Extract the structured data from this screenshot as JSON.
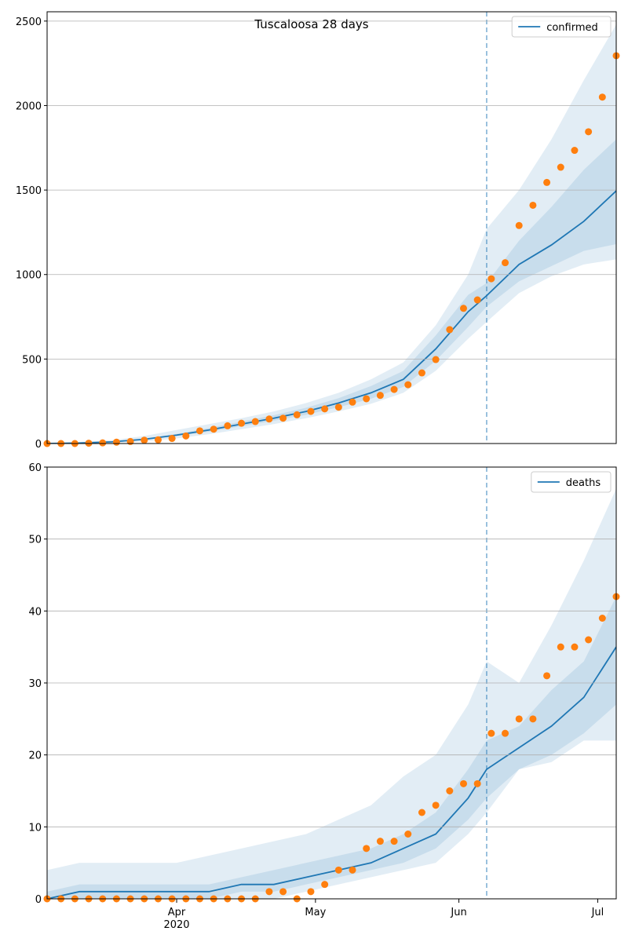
{
  "chart_data": [
    {
      "type": "line",
      "title": "Tuscaloosa 28 days",
      "xlim": [
        64,
        187
      ],
      "ylim": [
        0,
        2555
      ],
      "yticks": [
        0,
        500,
        1000,
        1500,
        2000,
        2500
      ],
      "grid": true,
      "legend": "upper right",
      "vline": 159,
      "x": [
        64,
        71,
        78,
        85,
        92,
        99,
        106,
        113,
        120,
        127,
        134,
        141,
        148,
        155,
        159,
        166,
        173,
        180,
        187
      ],
      "series": [
        {
          "name": "confirmed",
          "color": "#1f77b4",
          "values": [
            0,
            3,
            10,
            25,
            50,
            80,
            115,
            150,
            190,
            240,
            300,
            380,
            560,
            780,
            875,
            1060,
            1175,
            1315,
            1495
          ]
        }
      ],
      "bands": [
        {
          "color": "#1f77b4",
          "lower": [
            0,
            0,
            3,
            12,
            30,
            55,
            85,
            115,
            150,
            190,
            235,
            300,
            430,
            620,
            720,
            890,
            990,
            1060,
            1090
          ],
          "upper": [
            5,
            10,
            20,
            45,
            80,
            115,
            150,
            190,
            240,
            300,
            380,
            480,
            700,
            1000,
            1270,
            1500,
            1800,
            2150,
            2480
          ]
        },
        {
          "color": "#1f77b4",
          "lower": [
            0,
            2,
            8,
            20,
            44,
            70,
            102,
            135,
            170,
            215,
            265,
            335,
            490,
            690,
            810,
            960,
            1050,
            1140,
            1180
          ],
          "upper": [
            1,
            5,
            13,
            30,
            57,
            92,
            130,
            168,
            212,
            268,
            340,
            430,
            640,
            880,
            950,
            1200,
            1400,
            1620,
            1800
          ]
        }
      ],
      "points": {
        "color": "#ff7f0e",
        "x": [
          64,
          67,
          70,
          73,
          76,
          79,
          82,
          85,
          88,
          91,
          94,
          97,
          100,
          103,
          106,
          109,
          112,
          115,
          118,
          121,
          124,
          127,
          130,
          133,
          136,
          139,
          142,
          145,
          148,
          151,
          154,
          157,
          160,
          163,
          166,
          169,
          172,
          175,
          178,
          181,
          184,
          187
        ],
        "values": [
          0,
          0,
          0,
          2,
          4,
          8,
          12,
          20,
          22,
          30,
          45,
          75,
          85,
          105,
          120,
          130,
          145,
          150,
          170,
          190,
          205,
          215,
          245,
          265,
          285,
          320,
          348,
          418,
          497,
          674,
          800,
          850,
          975,
          1070,
          1290,
          1410,
          1545,
          1635,
          1735,
          1845,
          2050,
          2295
        ]
      }
    },
    {
      "type": "line",
      "xlim": [
        64,
        187
      ],
      "ylim": [
        0,
        60
      ],
      "yticks": [
        0,
        10,
        20,
        30,
        40,
        50,
        60
      ],
      "grid": true,
      "legend": "upper right",
      "vline": 159,
      "xticks": [
        {
          "value": 92,
          "label": "Apr\n2020"
        },
        {
          "value": 122,
          "label": "May"
        },
        {
          "value": 153,
          "label": "Jun"
        },
        {
          "value": 183,
          "label": "Jul"
        }
      ],
      "x": [
        64,
        71,
        78,
        85,
        92,
        99,
        106,
        113,
        120,
        127,
        134,
        141,
        148,
        155,
        159,
        166,
        173,
        180,
        187
      ],
      "series": [
        {
          "name": "deaths",
          "color": "#1f77b4",
          "values": [
            0,
            1,
            1,
            1,
            1,
            1,
            2,
            2,
            3,
            4,
            5,
            7,
            9,
            14,
            18,
            21,
            24,
            28,
            35
          ]
        }
      ],
      "bands": [
        {
          "color": "#1f77b4",
          "lower": [
            0,
            0,
            0,
            0,
            0,
            0,
            0,
            0,
            1,
            2,
            3,
            4,
            5,
            9,
            12,
            18,
            19,
            22,
            22
          ],
          "upper": [
            4,
            5,
            5,
            5,
            5,
            6,
            7,
            8,
            9,
            11,
            13,
            17,
            20,
            27,
            33,
            30,
            38,
            47,
            57
          ]
        },
        {
          "color": "#1f77b4",
          "lower": [
            0,
            0,
            0,
            0,
            0,
            0,
            1,
            1,
            2,
            3,
            4,
            5,
            7,
            11,
            14,
            18,
            20,
            23,
            27
          ],
          "upper": [
            1,
            2,
            2,
            2,
            2,
            2,
            3,
            4,
            5,
            6,
            7,
            9,
            12,
            18,
            22,
            24,
            29,
            33,
            42
          ]
        }
      ],
      "points": {
        "color": "#ff7f0e",
        "x": [
          64,
          67,
          70,
          73,
          76,
          79,
          82,
          85,
          88,
          91,
          94,
          97,
          100,
          103,
          106,
          109,
          112,
          115,
          118,
          121,
          124,
          127,
          130,
          133,
          136,
          139,
          142,
          145,
          148,
          151,
          154,
          157,
          160,
          163,
          166,
          169,
          172,
          175,
          178,
          181,
          184,
          187
        ],
        "values": [
          0,
          0,
          0,
          0,
          0,
          0,
          0,
          0,
          0,
          0,
          0,
          0,
          0,
          0,
          0,
          0,
          1,
          1,
          0,
          1,
          2,
          4,
          4,
          7,
          8,
          8,
          9,
          12,
          13,
          15,
          16,
          16,
          23,
          23,
          25,
          25,
          31,
          35,
          35,
          36,
          39,
          42
        ]
      }
    }
  ]
}
